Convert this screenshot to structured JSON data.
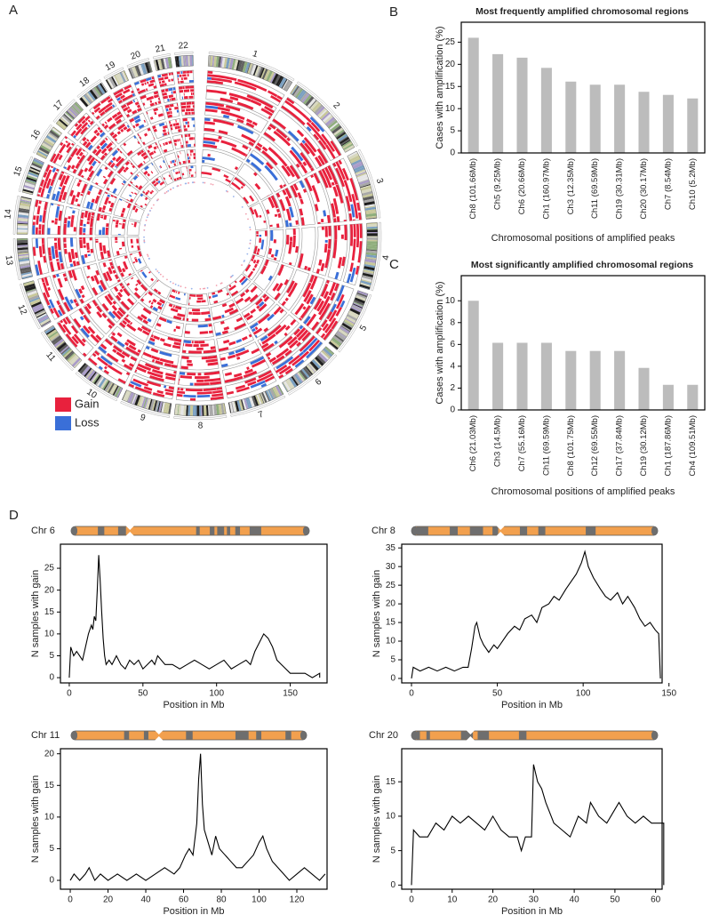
{
  "panel_labels": [
    "A",
    "B",
    "C",
    "D"
  ],
  "chart_data": [
    {
      "type": "circos",
      "chromosomes": [
        "1",
        "2",
        "3",
        "4",
        "5",
        "6",
        "7",
        "8",
        "9",
        "10",
        "11",
        "12",
        "13",
        "14",
        "15",
        "16",
        "17",
        "18",
        "19",
        "20",
        "21",
        "22"
      ],
      "legend": [
        {
          "name": "Gain",
          "color": "#e8213d"
        },
        {
          "name": "Loss",
          "color": "#3a6fd8"
        }
      ]
    },
    {
      "type": "bar",
      "title": "Most frequently amplified chromosomal regions",
      "xlabel": "Chromosomal positions of amplified peaks",
      "ylabel": "Cases with amplification (%)",
      "categories": [
        "Ch8 (101.66Mb)",
        "Ch5 (9.25Mb)",
        "Ch6 (20.66Mb)",
        "Ch1 (160.97Mb)",
        "Ch3 (12.35Mb)",
        "Ch11 (69.59Mb)",
        "Ch19 (30.31Mb)",
        "Ch20 (30.17Mb)",
        "Ch7 (8.54Mb)",
        "Ch10 (5.2Mb)"
      ],
      "values": [
        26,
        22.3,
        21.5,
        19.2,
        16.1,
        15.4,
        15.4,
        13.8,
        13.1,
        12.3
      ],
      "color": "#bcbcbc",
      "ylim": [
        0,
        29.5
      ],
      "yticks": [
        0,
        5,
        10,
        15,
        20,
        25
      ]
    },
    {
      "type": "bar",
      "title": "Most significantly amplified chromosomal regions",
      "xlabel": "Chromosomal positions of amplified peaks",
      "ylabel": "Cases with amplification (%)",
      "categories": [
        "Ch6 (21.03Mb)",
        "Ch3 (14.5Mb)",
        "Ch7 (55.16Mb)",
        "Ch11 (69.59Mb)",
        "Ch8 (101.75Mb)",
        "Ch12 (69.55Mb)",
        "Ch17 (37.84Mb)",
        "Ch19 (30.12Mb)",
        "Ch1 (187.86Mb)",
        "Ch4 (109.51Mb)"
      ],
      "values": [
        10,
        6.15,
        6.15,
        6.15,
        5.4,
        5.4,
        5.4,
        3.85,
        2.3,
        2.3
      ],
      "color": "#bcbcbc",
      "ylim": [
        0,
        12.3
      ],
      "yticks": [
        0,
        2,
        4,
        6,
        8,
        10
      ]
    },
    {
      "type": "line",
      "title": "Chr 6",
      "xlabel": "Position in Mb",
      "ylabel": "N samples with gain",
      "color": "#000000",
      "x": [
        0,
        1,
        3,
        5,
        7,
        9,
        11,
        13,
        15,
        16,
        17,
        18,
        19,
        20,
        21,
        22,
        23,
        24,
        25,
        27,
        29,
        32,
        35,
        38,
        41,
        44,
        47,
        50,
        53,
        56,
        58,
        60,
        65,
        70,
        75,
        80,
        85,
        90,
        95,
        100,
        105,
        110,
        115,
        120,
        123,
        126,
        129,
        132,
        135,
        138,
        141,
        144,
        147,
        150,
        155,
        160,
        165,
        170,
        170
      ],
      "values": [
        0,
        7,
        5,
        6,
        5,
        4,
        7,
        10,
        12,
        11,
        14,
        13,
        20,
        28,
        22,
        15,
        9,
        5,
        3,
        4,
        3,
        5,
        3,
        2,
        4,
        3,
        4,
        2,
        3,
        4,
        3,
        5,
        3,
        3,
        2,
        3,
        4,
        3,
        2,
        3,
        4,
        2,
        3,
        4,
        3,
        6,
        8,
        10,
        9,
        7,
        4,
        3,
        2,
        1,
        1,
        1,
        0,
        1,
        0
      ],
      "xlim": [
        -6,
        175
      ],
      "ylim": [
        -1.2,
        30.5
      ],
      "xticks": [
        0,
        50,
        100,
        150
      ],
      "yticks": [
        0,
        5,
        10,
        15,
        20,
        25
      ]
    },
    {
      "type": "line",
      "title": "Chr 8",
      "xlabel": "Position in Mb",
      "ylabel": "N samples with gain",
      "color": "#000000",
      "x": [
        0,
        1,
        5,
        10,
        15,
        20,
        25,
        30,
        33,
        35,
        37,
        38,
        40,
        42,
        45,
        48,
        50,
        53,
        56,
        60,
        63,
        66,
        70,
        73,
        76,
        80,
        83,
        86,
        90,
        93,
        96,
        99,
        101,
        103,
        106,
        110,
        113,
        116,
        120,
        123,
        126,
        130,
        133,
        136,
        139,
        142,
        144,
        145
      ],
      "values": [
        0,
        3,
        2,
        3,
        2,
        3,
        2,
        3,
        3,
        8,
        14,
        15,
        11,
        9,
        7,
        9,
        8,
        10,
        12,
        14,
        13,
        16,
        17,
        15,
        19,
        20,
        22,
        21,
        24,
        26,
        28,
        31,
        34,
        30,
        27,
        24,
        22,
        21,
        23,
        20,
        22,
        19,
        16,
        14,
        15,
        13,
        12,
        0
      ],
      "xlim": [
        -5.7,
        146
      ],
      "ylim": [
        -1.2,
        36
      ],
      "xticks": [
        0,
        50,
        100,
        150
      ],
      "yticks": [
        0,
        5,
        10,
        15,
        20,
        25,
        30,
        35
      ]
    },
    {
      "type": "line",
      "title": "Chr 11",
      "xlabel": "Position in Mb",
      "ylabel": "N samples with gain",
      "color": "#000000",
      "x": [
        0,
        2,
        5,
        8,
        10,
        13,
        16,
        20,
        25,
        30,
        35,
        40,
        45,
        50,
        55,
        58,
        61,
        63,
        65,
        67,
        68,
        69,
        70,
        71,
        73,
        75,
        77,
        79,
        82,
        85,
        88,
        91,
        94,
        97,
        100,
        102,
        104,
        107,
        110,
        113,
        116,
        120,
        124,
        128,
        132,
        135
      ],
      "values": [
        0,
        1,
        0,
        1,
        2,
        0,
        1,
        0,
        1,
        0,
        1,
        0,
        1,
        2,
        1,
        2,
        4,
        5,
        4,
        9,
        16,
        20,
        12,
        8,
        6,
        4,
        7,
        5,
        4,
        3,
        2,
        2,
        3,
        4,
        6,
        7,
        5,
        3,
        2,
        1,
        0,
        1,
        2,
        1,
        0,
        1
      ],
      "xlim": [
        -5.2,
        136
      ],
      "ylim": [
        -1.4,
        20.8
      ],
      "xticks": [
        0,
        20,
        40,
        60,
        80,
        100,
        120
      ],
      "yticks": [
        0,
        5,
        10,
        15,
        20
      ]
    },
    {
      "type": "line",
      "title": "Chr 20",
      "xlabel": "Position in Mb",
      "ylabel": "N samples with gain",
      "color": "#000000",
      "x": [
        0,
        0.5,
        2,
        4,
        6,
        8,
        10,
        12,
        14,
        16,
        18,
        20,
        22,
        24,
        26,
        27,
        28,
        29.5,
        30,
        31,
        32,
        33,
        35,
        37,
        39,
        41,
        43,
        44,
        46,
        48,
        50,
        51,
        53,
        55,
        57,
        59,
        61,
        62,
        62
      ],
      "values": [
        0,
        8,
        7,
        7,
        9,
        8,
        10,
        9,
        10,
        9,
        8,
        10,
        8,
        7,
        7,
        5,
        7,
        7,
        17.5,
        15,
        14,
        12,
        9,
        8,
        7,
        10,
        9,
        12,
        10,
        9,
        11,
        12,
        10,
        9,
        10,
        9,
        9,
        9,
        0
      ],
      "xlim": [
        -2.4,
        61.6
      ],
      "ylim": [
        -0.6,
        19.8
      ],
      "xticks": [
        0,
        10,
        20,
        30,
        40,
        50,
        60
      ],
      "yticks": [
        0,
        5,
        10,
        15
      ]
    }
  ]
}
